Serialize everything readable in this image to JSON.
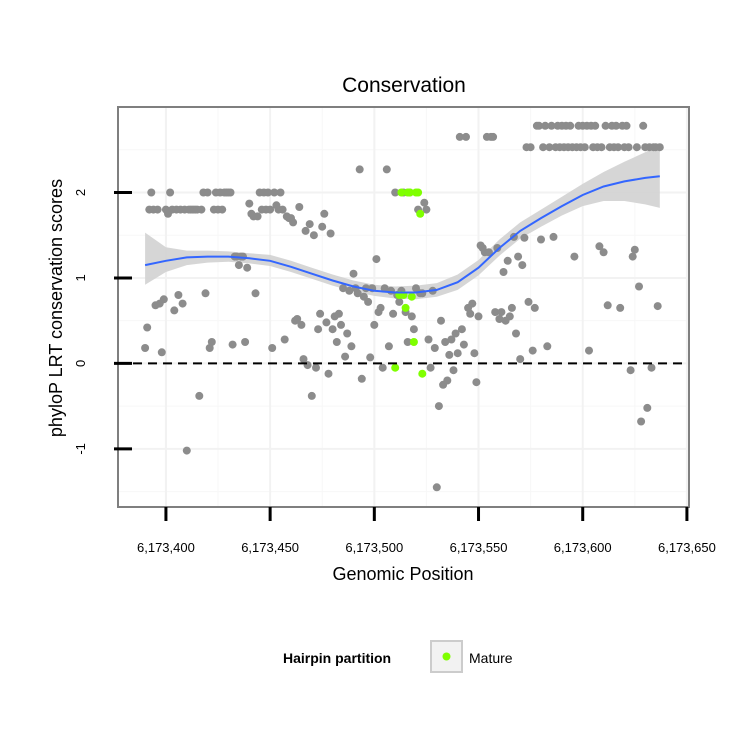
{
  "chart_data": {
    "type": "scatter",
    "title": "Conservation",
    "xlabel": "Genomic Position",
    "ylabel": "phyloP LRT conservation scores",
    "xlim": [
      6173377,
      6173651
    ],
    "ylim": [
      -1.68,
      3.0
    ],
    "x_ticks": [
      6173400,
      6173450,
      6173500,
      6173550,
      6173600,
      6173650
    ],
    "x_tick_labels": [
      "6,173,400",
      "6,173,450",
      "6,173,500",
      "6,173,550",
      "6,173,600",
      "6,173,650"
    ],
    "y_ticks": [
      -1,
      0,
      1,
      2
    ],
    "y_tick_labels": [
      "-1",
      "0",
      "1",
      "2"
    ],
    "reference_line": {
      "y": 0,
      "style": "dashed",
      "color": "#000000"
    },
    "legend": {
      "title": "Hairpin partition",
      "entries": [
        {
          "label": "Mature",
          "color": "#7fff00"
        }
      ],
      "position": "bottom"
    },
    "colors": {
      "other": "#8c8c8c",
      "mature": "#7fff00",
      "smooth": "#3366ff",
      "ribbon": "#d2d2d2",
      "panel_border": "#7f7f7f",
      "grid": "#f2f2f2"
    },
    "smooth": {
      "x": [
        6173390,
        6173400,
        6173410,
        6173420,
        6173430,
        6173440,
        6173450,
        6173460,
        6173470,
        6173480,
        6173490,
        6173500,
        6173510,
        6173520,
        6173530,
        6173540,
        6173550,
        6173560,
        6173570,
        6173580,
        6173590,
        6173600,
        6173610,
        6173620,
        6173630,
        6173637
      ],
      "y": [
        1.15,
        1.2,
        1.24,
        1.25,
        1.25,
        1.23,
        1.2,
        1.13,
        1.05,
        0.97,
        0.9,
        0.85,
        0.83,
        0.83,
        0.86,
        0.95,
        1.12,
        1.35,
        1.55,
        1.7,
        1.84,
        1.97,
        2.07,
        2.13,
        2.17,
        2.19
      ],
      "lower": [
        0.92,
        1.07,
        1.15,
        1.18,
        1.19,
        1.17,
        1.14,
        1.07,
        0.99,
        0.91,
        0.84,
        0.79,
        0.76,
        0.75,
        0.78,
        0.86,
        1.03,
        1.26,
        1.46,
        1.6,
        1.73,
        1.84,
        1.9,
        1.9,
        1.86,
        1.82
      ],
      "upper": [
        1.53,
        1.36,
        1.32,
        1.32,
        1.31,
        1.29,
        1.27,
        1.2,
        1.12,
        1.04,
        0.97,
        0.92,
        0.9,
        0.91,
        0.94,
        1.04,
        1.21,
        1.45,
        1.65,
        1.8,
        1.95,
        2.1,
        2.24,
        2.36,
        2.47,
        2.56
      ]
    },
    "series": [
      {
        "name": "Other",
        "points": [
          [
            6173390,
            0.18
          ],
          [
            6173391,
            0.42
          ],
          [
            6173392,
            1.8
          ],
          [
            6173393,
            2.0
          ],
          [
            6173394,
            1.8
          ],
          [
            6173395,
            0.68
          ],
          [
            6173396,
            1.8
          ],
          [
            6173397,
            0.7
          ],
          [
            6173398,
            0.13
          ],
          [
            6173399,
            0.75
          ],
          [
            6173400,
            1.8
          ],
          [
            6173401,
            1.75
          ],
          [
            6173402,
            2.0
          ],
          [
            6173403,
            1.8
          ],
          [
            6173404,
            0.62
          ],
          [
            6173405,
            1.8
          ],
          [
            6173406,
            0.8
          ],
          [
            6173407,
            1.8
          ],
          [
            6173408,
            0.7
          ],
          [
            6173409,
            1.8
          ],
          [
            6173410,
            -1.02
          ],
          [
            6173411,
            1.8
          ],
          [
            6173412,
            1.8
          ],
          [
            6173413,
            1.8
          ],
          [
            6173414,
            1.8
          ],
          [
            6173415,
            1.8
          ],
          [
            6173416,
            -0.38
          ],
          [
            6173417,
            1.8
          ],
          [
            6173418,
            2.0
          ],
          [
            6173419,
            0.82
          ],
          [
            6173420,
            2.0
          ],
          [
            6173421,
            0.18
          ],
          [
            6173422,
            0.25
          ],
          [
            6173423,
            1.8
          ],
          [
            6173424,
            2.0
          ],
          [
            6173425,
            1.8
          ],
          [
            6173426,
            2.0
          ],
          [
            6173427,
            1.8
          ],
          [
            6173428,
            2.0
          ],
          [
            6173429,
            2.0
          ],
          [
            6173430,
            2.0
          ],
          [
            6173431,
            2.0
          ],
          [
            6173432,
            0.22
          ],
          [
            6173433,
            1.25
          ],
          [
            6173434,
            1.25
          ],
          [
            6173435,
            1.15
          ],
          [
            6173436,
            1.25
          ],
          [
            6173437,
            1.25
          ],
          [
            6173438,
            0.25
          ],
          [
            6173439,
            1.12
          ],
          [
            6173440,
            1.87
          ],
          [
            6173441,
            1.75
          ],
          [
            6173442,
            1.72
          ],
          [
            6173443,
            0.82
          ],
          [
            6173444,
            1.72
          ],
          [
            6173445,
            2.0
          ],
          [
            6173446,
            1.8
          ],
          [
            6173447,
            2.0
          ],
          [
            6173448,
            1.8
          ],
          [
            6173449,
            2.0
          ],
          [
            6173450,
            1.8
          ],
          [
            6173451,
            0.18
          ],
          [
            6173452,
            2.0
          ],
          [
            6173453,
            1.85
          ],
          [
            6173454,
            1.8
          ],
          [
            6173455,
            2.0
          ],
          [
            6173456,
            1.8
          ],
          [
            6173457,
            0.28
          ],
          [
            6173458,
            1.72
          ],
          [
            6173459,
            1.7
          ],
          [
            6173460,
            1.7
          ],
          [
            6173461,
            1.65
          ],
          [
            6173462,
            0.5
          ],
          [
            6173463,
            0.52
          ],
          [
            6173464,
            1.83
          ],
          [
            6173465,
            0.45
          ],
          [
            6173466,
            0.05
          ],
          [
            6173467,
            1.55
          ],
          [
            6173468,
            -0.02
          ],
          [
            6173469,
            1.63
          ],
          [
            6173470,
            -0.38
          ],
          [
            6173471,
            1.5
          ],
          [
            6173472,
            -0.05
          ],
          [
            6173473,
            0.4
          ],
          [
            6173474,
            0.58
          ],
          [
            6173475,
            1.6
          ],
          [
            6173476,
            1.75
          ],
          [
            6173477,
            0.48
          ],
          [
            6173478,
            -0.12
          ],
          [
            6173479,
            1.52
          ],
          [
            6173480,
            0.4
          ],
          [
            6173481,
            0.55
          ],
          [
            6173482,
            0.25
          ],
          [
            6173483,
            0.58
          ],
          [
            6173484,
            0.45
          ],
          [
            6173485,
            0.88
          ],
          [
            6173486,
            0.08
          ],
          [
            6173487,
            0.35
          ],
          [
            6173488,
            0.85
          ],
          [
            6173489,
            0.2
          ],
          [
            6173490,
            1.05
          ],
          [
            6173491,
            0.88
          ],
          [
            6173492,
            0.82
          ],
          [
            6173493,
            2.27
          ],
          [
            6173494,
            -0.18
          ],
          [
            6173495,
            0.78
          ],
          [
            6173496,
            0.88
          ],
          [
            6173497,
            0.72
          ],
          [
            6173498,
            0.07
          ],
          [
            6173499,
            0.88
          ],
          [
            6173500,
            0.45
          ],
          [
            6173501,
            1.22
          ],
          [
            6173502,
            0.6
          ],
          [
            6173503,
            0.65
          ],
          [
            6173504,
            -0.05
          ],
          [
            6173505,
            0.88
          ],
          [
            6173506,
            2.27
          ],
          [
            6173507,
            0.2
          ],
          [
            6173508,
            0.85
          ],
          [
            6173509,
            0.58
          ],
          [
            6173510,
            2.0
          ],
          [
            6173511,
            0.8
          ],
          [
            6173512,
            0.72
          ],
          [
            6173513,
            0.85
          ],
          [
            6173514,
            2.0
          ],
          [
            6173515,
            0.6
          ],
          [
            6173516,
            0.25
          ],
          [
            6173517,
            2.0
          ],
          [
            6173518,
            0.55
          ],
          [
            6173519,
            0.4
          ],
          [
            6173520,
            0.88
          ],
          [
            6173521,
            1.8
          ],
          [
            6173522,
            0.82
          ],
          [
            6173523,
            0.82
          ],
          [
            6173524,
            1.88
          ],
          [
            6173525,
            1.8
          ],
          [
            6173526,
            0.28
          ],
          [
            6173527,
            -0.05
          ],
          [
            6173528,
            0.85
          ],
          [
            6173529,
            0.18
          ],
          [
            6173530,
            -1.45
          ],
          [
            6173531,
            -0.5
          ],
          [
            6173532,
            0.5
          ],
          [
            6173533,
            -0.25
          ],
          [
            6173534,
            0.25
          ],
          [
            6173535,
            -0.2
          ],
          [
            6173536,
            0.1
          ],
          [
            6173537,
            0.28
          ],
          [
            6173538,
            -0.08
          ],
          [
            6173539,
            0.35
          ],
          [
            6173540,
            0.12
          ],
          [
            6173541,
            2.65
          ],
          [
            6173542,
            0.4
          ],
          [
            6173543,
            0.22
          ],
          [
            6173544,
            2.65
          ],
          [
            6173545,
            0.65
          ],
          [
            6173546,
            0.58
          ],
          [
            6173547,
            0.7
          ],
          [
            6173548,
            0.12
          ],
          [
            6173549,
            -0.22
          ],
          [
            6173550,
            0.55
          ],
          [
            6173551,
            1.38
          ],
          [
            6173552,
            1.35
          ],
          [
            6173553,
            1.3
          ],
          [
            6173554,
            2.65
          ],
          [
            6173555,
            1.3
          ],
          [
            6173556,
            2.65
          ],
          [
            6173557,
            2.65
          ],
          [
            6173558,
            0.6
          ],
          [
            6173559,
            1.35
          ],
          [
            6173560,
            0.52
          ],
          [
            6173561,
            0.6
          ],
          [
            6173562,
            1.07
          ],
          [
            6173563,
            0.5
          ],
          [
            6173564,
            1.2
          ],
          [
            6173565,
            0.55
          ],
          [
            6173566,
            0.65
          ],
          [
            6173567,
            1.48
          ],
          [
            6173568,
            0.35
          ],
          [
            6173569,
            1.25
          ],
          [
            6173570,
            0.05
          ],
          [
            6173571,
            1.15
          ],
          [
            6173572,
            1.47
          ],
          [
            6173573,
            2.53
          ],
          [
            6173574,
            0.72
          ],
          [
            6173575,
            2.53
          ],
          [
            6173576,
            0.15
          ],
          [
            6173577,
            0.65
          ],
          [
            6173578,
            2.78
          ],
          [
            6173579,
            2.78
          ],
          [
            6173580,
            1.45
          ],
          [
            6173581,
            2.53
          ],
          [
            6173582,
            2.78
          ],
          [
            6173583,
            0.2
          ],
          [
            6173584,
            2.53
          ],
          [
            6173585,
            2.78
          ],
          [
            6173586,
            1.48
          ],
          [
            6173587,
            2.53
          ],
          [
            6173588,
            2.78
          ],
          [
            6173589,
            2.53
          ],
          [
            6173590,
            2.78
          ],
          [
            6173591,
            2.53
          ],
          [
            6173592,
            2.78
          ],
          [
            6173593,
            2.53
          ],
          [
            6173594,
            2.78
          ],
          [
            6173595,
            2.53
          ],
          [
            6173596,
            1.25
          ],
          [
            6173597,
            2.53
          ],
          [
            6173598,
            2.78
          ],
          [
            6173599,
            2.53
          ],
          [
            6173600,
            2.78
          ],
          [
            6173601,
            2.53
          ],
          [
            6173602,
            2.78
          ],
          [
            6173603,
            0.15
          ],
          [
            6173604,
            2.78
          ],
          [
            6173605,
            2.53
          ],
          [
            6173606,
            2.78
          ],
          [
            6173607,
            2.53
          ],
          [
            6173608,
            1.37
          ],
          [
            6173609,
            2.53
          ],
          [
            6173610,
            1.3
          ],
          [
            6173611,
            2.78
          ],
          [
            6173612,
            0.68
          ],
          [
            6173613,
            2.53
          ],
          [
            6173614,
            2.78
          ],
          [
            6173615,
            2.53
          ],
          [
            6173616,
            2.78
          ],
          [
            6173617,
            2.53
          ],
          [
            6173618,
            0.65
          ],
          [
            6173619,
            2.78
          ],
          [
            6173620,
            2.53
          ],
          [
            6173621,
            2.78
          ],
          [
            6173622,
            2.53
          ],
          [
            6173623,
            -0.08
          ],
          [
            6173624,
            1.25
          ],
          [
            6173625,
            1.33
          ],
          [
            6173626,
            2.53
          ],
          [
            6173627,
            0.9
          ],
          [
            6173628,
            -0.68
          ],
          [
            6173629,
            2.78
          ],
          [
            6173630,
            2.53
          ],
          [
            6173631,
            -0.52
          ],
          [
            6173632,
            2.53
          ],
          [
            6173633,
            -0.05
          ],
          [
            6173634,
            2.53
          ],
          [
            6173635,
            2.53
          ],
          [
            6173636,
            0.67
          ],
          [
            6173637,
            2.53
          ]
        ]
      },
      {
        "name": "Mature",
        "points": [
          [
            6173510,
            -0.05
          ],
          [
            6173512,
            0.8
          ],
          [
            6173513,
            2.0
          ],
          [
            6173514,
            0.8
          ],
          [
            6173515,
            0.65
          ],
          [
            6173516,
            2.0
          ],
          [
            6173517,
            2.0
          ],
          [
            6173518,
            0.78
          ],
          [
            6173519,
            0.25
          ],
          [
            6173520,
            2.0
          ],
          [
            6173521,
            2.0
          ],
          [
            6173522,
            1.75
          ],
          [
            6173523,
            -0.12
          ]
        ]
      }
    ]
  }
}
